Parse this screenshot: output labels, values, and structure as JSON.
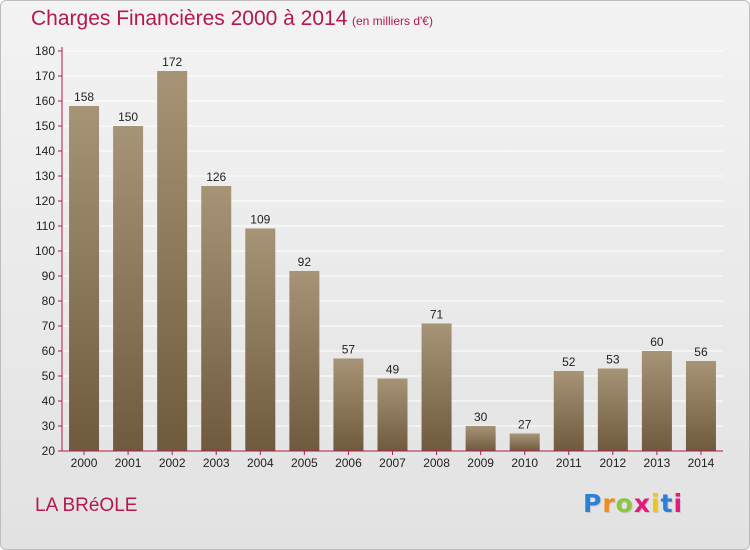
{
  "title": "Charges Financières 2000 à 2014",
  "subtitle": "(en milliers d'€)",
  "commune": "LA BRéOLE",
  "logo": {
    "text": "Proxiti",
    "letter_colors": [
      "#2b7fd6",
      "#f08c1a",
      "#8cc63f",
      "#e6187d",
      "#f0c419",
      "#2b7fd6",
      "#e6187d"
    ]
  },
  "colors": {
    "accent": "#b5174f",
    "bar_top": "#a79477",
    "bar_bottom": "#6f5a3e",
    "axis": "#b5174f",
    "grid": "#ffffff",
    "label_text": "#222222"
  },
  "chart_data": {
    "type": "bar",
    "categories": [
      "2000",
      "2001",
      "2002",
      "2003",
      "2004",
      "2005",
      "2006",
      "2007",
      "2008",
      "2009",
      "2010",
      "2011",
      "2012",
      "2013",
      "2014"
    ],
    "values": [
      158,
      150,
      172,
      126,
      109,
      92,
      57,
      49,
      71,
      30,
      27,
      52,
      53,
      60,
      56
    ],
    "ylim": [
      20,
      180
    ],
    "yticks": [
      20,
      30,
      40,
      50,
      60,
      70,
      80,
      90,
      100,
      110,
      120,
      130,
      140,
      150,
      160,
      170,
      180
    ],
    "grid": true,
    "data_labels": true
  }
}
